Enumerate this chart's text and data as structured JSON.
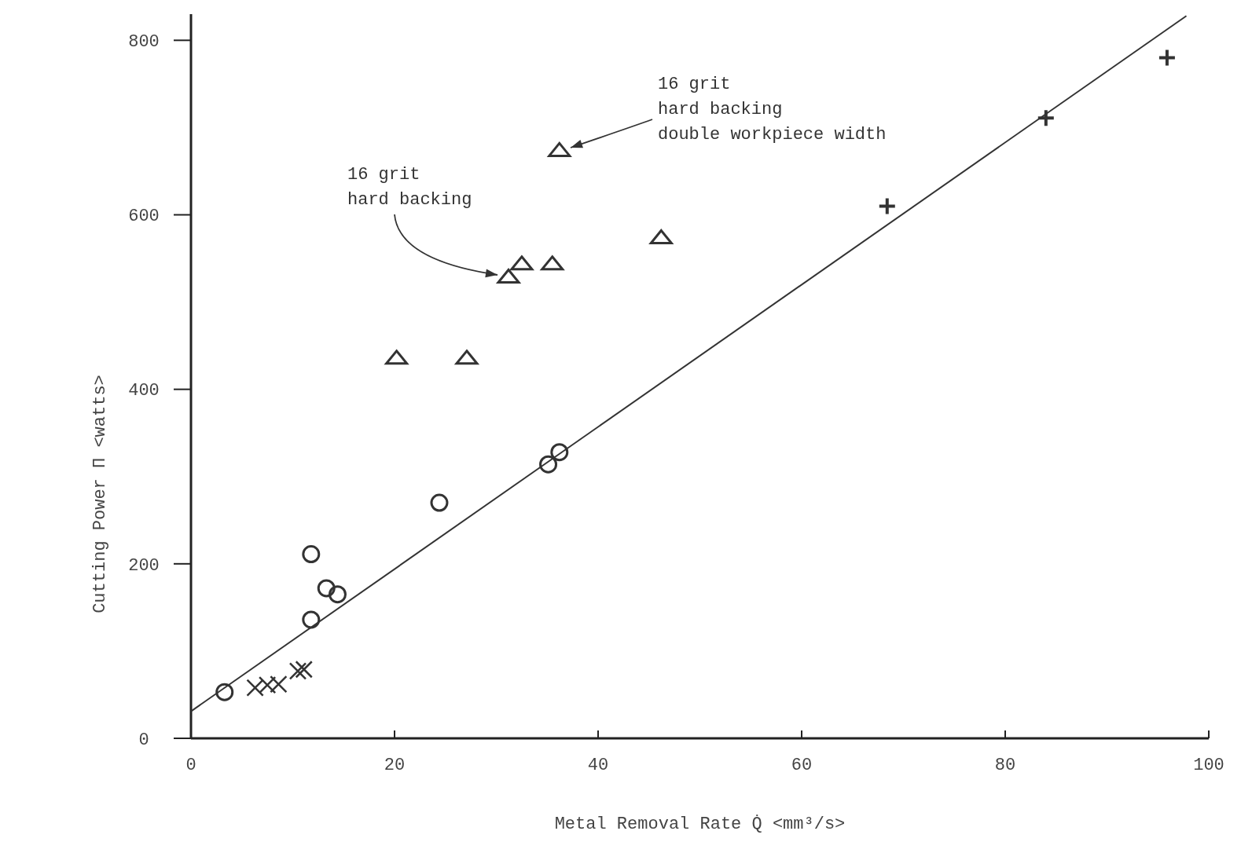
{
  "chart_data": {
    "type": "scatter",
    "xlabel": "Metal Removal Rate Q̇ <mm³/s>",
    "ylabel": "Cutting Power Π <watts>",
    "xlim": [
      0,
      100
    ],
    "ylim": [
      0,
      830
    ],
    "xticks": [
      0,
      20,
      40,
      60,
      80,
      100
    ],
    "yticks": [
      0,
      200,
      400,
      600,
      800
    ],
    "grid": false,
    "series": [
      {
        "marker": "circle",
        "color": "#333333",
        "x": [
          3.3,
          11.8,
          11.8,
          13.3,
          14.4,
          24.4,
          35.1,
          36.2
        ],
        "values": [
          53,
          136,
          211,
          172,
          165,
          270,
          314,
          328
        ]
      },
      {
        "marker": "cross",
        "color": "#333333",
        "x": [
          6.3,
          7.5,
          8.6,
          10.5,
          11.1
        ],
        "values": [
          58,
          61,
          62,
          77,
          79
        ]
      },
      {
        "marker": "triangle",
        "color": "#333333",
        "x": [
          20.2,
          27.1,
          31.2,
          32.5,
          35.5,
          46.2,
          36.2
        ],
        "values": [
          435,
          435,
          528,
          543,
          543,
          573,
          673
        ]
      },
      {
        "marker": "plus",
        "color": "#333333",
        "x": [
          68.4,
          84,
          95.9
        ],
        "values": [
          610,
          711,
          780
        ]
      },
      {
        "type": "line",
        "marker": "none",
        "line_style": "solid",
        "color": "#333333",
        "x": [
          0,
          97.8
        ],
        "values": [
          31,
          828
        ]
      }
    ],
    "annotations": [
      "16 grit\nhard backing",
      "16 grit\nhard backing\ndouble workpiece width"
    ]
  }
}
